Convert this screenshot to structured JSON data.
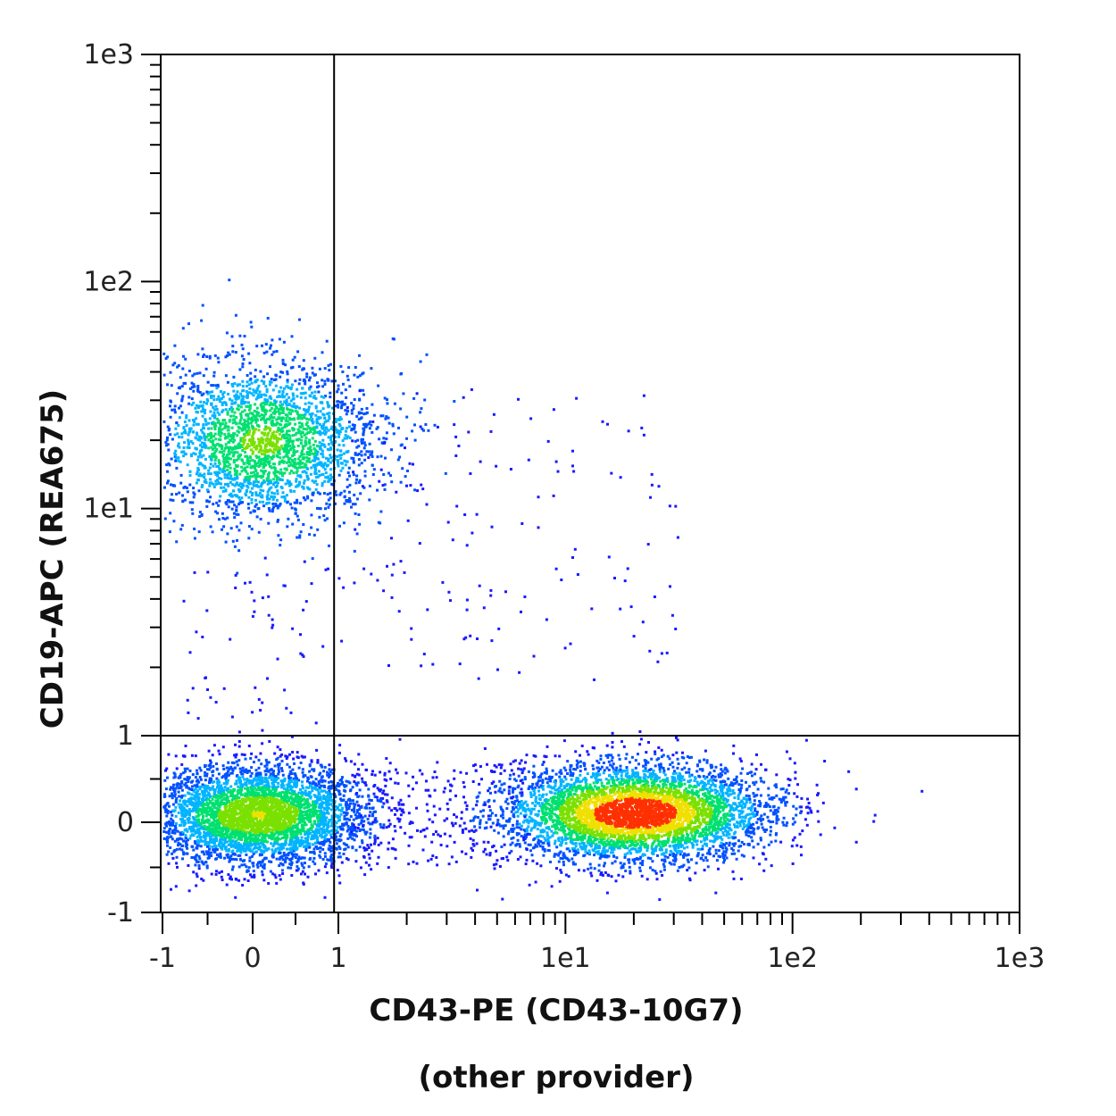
{
  "chart_data": {
    "type": "scatter",
    "plot_style": "flow cytometry density dot plot (pseudocolor)",
    "x_axis": {
      "label": "CD43-PE (CD43-10G7)",
      "sublabel": "(other provider)",
      "scale": "biexponential (linear near 0, log above 1)",
      "range": [
        -1,
        1000
      ],
      "tick_labels": [
        "-1",
        "0",
        "1",
        "1e1",
        "1e2",
        "1e3"
      ],
      "tick_values": [
        -1,
        0,
        1,
        10,
        100,
        1000
      ]
    },
    "y_axis": {
      "label": "CD19-APC (REA675)",
      "scale": "biexponential (linear near 0, log above 1)",
      "range": [
        -1,
        1000
      ],
      "tick_labels": [
        "-1",
        "0",
        "1",
        "1e1",
        "1e2",
        "1e3"
      ],
      "tick_values": [
        -1,
        0,
        1,
        10,
        100,
        1000
      ]
    },
    "quadrant_gate": {
      "x": 0.95,
      "y": 1
    },
    "populations": [
      {
        "name_visible": false,
        "x_center": 0.1,
        "y_center": 20,
        "x_spread": 0.7,
        "y_spread_decades": 0.35,
        "relative_density": 0.55
      },
      {
        "name_visible": false,
        "x_center": 0.0,
        "y_center": 0.1,
        "x_spread": 0.6,
        "y_spread": 0.3,
        "relative_density": 0.9
      },
      {
        "name_visible": false,
        "x_center": 20,
        "y_center": 0.1,
        "x_spread_decades": 0.45,
        "y_spread": 0.3,
        "relative_density": 1.0
      }
    ],
    "color_scale": [
      "#1a1aff",
      "#0050ff",
      "#00b4ff",
      "#00e070",
      "#7be000",
      "#f0e000",
      "#ff3000"
    ],
    "grid": false,
    "legend": "none"
  }
}
